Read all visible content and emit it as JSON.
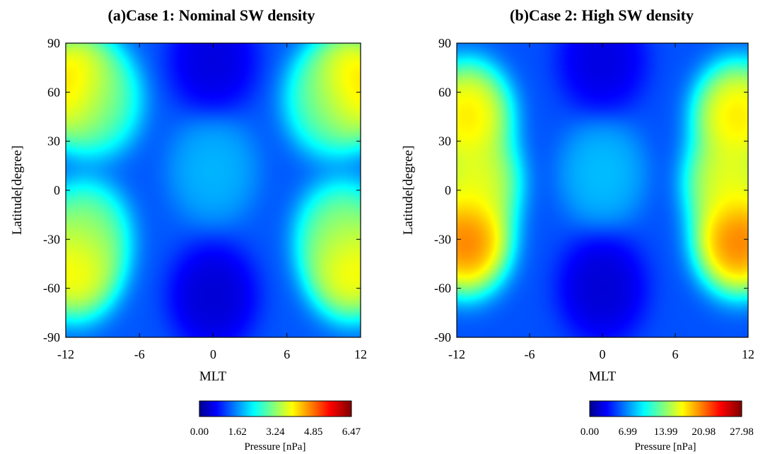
{
  "chart_data": [
    {
      "type": "heatmap",
      "title": "(a)Case 1: Nominal SW density",
      "xlabel": "MLT",
      "ylabel": "Latitude[degree]",
      "xlim": [
        -12,
        12
      ],
      "ylim": [
        -90,
        90
      ],
      "xticks": [
        "-12",
        "-6",
        "0",
        "6",
        "12"
      ],
      "yticks": [
        "90",
        "60",
        "30",
        "0",
        "-30",
        "-60",
        "-90"
      ],
      "colorbar": {
        "label": "Pressure [nPa]",
        "min": 0,
        "max": 6.47,
        "ticks": [
          "0.00",
          "1.62",
          "3.24",
          "4.85",
          "6.47"
        ]
      },
      "background": 1.2,
      "features": [
        {
          "mlt": -11.2,
          "lat": 63,
          "value": 5.4
        },
        {
          "mlt": 11.2,
          "lat": 63,
          "value": 5.4
        },
        {
          "mlt": -11.3,
          "lat": -45,
          "value": 5.0
        },
        {
          "mlt": 11.3,
          "lat": -45,
          "value": 5.0
        },
        {
          "mlt": -10.5,
          "lat": -28,
          "value": 3.6
        },
        {
          "mlt": 10.5,
          "lat": -28,
          "value": 3.6
        },
        {
          "mlt": -9.5,
          "lat": 55,
          "value": 3.3
        },
        {
          "mlt": 9.5,
          "lat": 55,
          "value": 3.3
        },
        {
          "mlt": 0,
          "lat": 12,
          "value": 2.0
        },
        {
          "mlt": 0,
          "lat": 80,
          "value": 0.2
        },
        {
          "mlt": 0,
          "lat": -65,
          "value": 0.1
        }
      ]
    },
    {
      "type": "heatmap",
      "title": "(b)Case 2: High SW density",
      "xlabel": "MLT",
      "ylabel": "Latitude[degree]",
      "xlim": [
        -12,
        12
      ],
      "ylim": [
        -90,
        90
      ],
      "xticks": [
        "-12",
        "-6",
        "0",
        "6",
        "12"
      ],
      "yticks": [
        "90",
        "60",
        "30",
        "0",
        "-30",
        "-60",
        "-90"
      ],
      "colorbar": {
        "label": "Pressure [nPa]",
        "min": 0,
        "max": 27.98,
        "ticks": [
          "0.00",
          "6.99",
          "13.99",
          "20.98",
          "27.98"
        ]
      },
      "background": 5,
      "features": [
        {
          "mlt": -11.2,
          "lat": 45,
          "value": 21.5
        },
        {
          "mlt": 11.2,
          "lat": 45,
          "value": 21.5
        },
        {
          "mlt": -11.3,
          "lat": -30,
          "value": 25.5
        },
        {
          "mlt": 11.3,
          "lat": -30,
          "value": 25.5
        },
        {
          "mlt": -10.5,
          "lat": 5,
          "value": 19.5
        },
        {
          "mlt": 10.5,
          "lat": 5,
          "value": 19.5
        },
        {
          "mlt": 0,
          "lat": 10,
          "value": 9.0
        },
        {
          "mlt": 0,
          "lat": 80,
          "value": 1.0
        },
        {
          "mlt": 0,
          "lat": -60,
          "value": 0.5
        }
      ]
    }
  ]
}
